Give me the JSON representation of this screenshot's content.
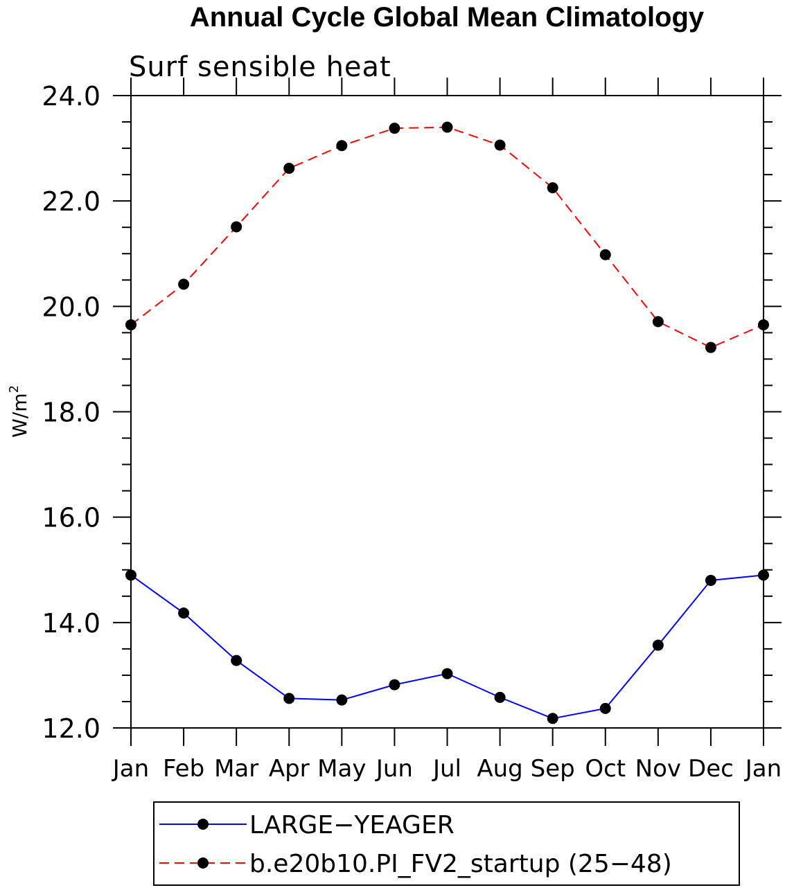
{
  "chart_data": {
    "type": "line",
    "title": "Annual Cycle Global Mean Climatology",
    "subtitle": "Surf sensible heat",
    "ylabel": "W/m",
    "ylabel_superscript": "2",
    "ylim": [
      12.0,
      24.0
    ],
    "y_major_ticks": [
      "12.0",
      "14.0",
      "16.0",
      "18.0",
      "20.0",
      "22.0",
      "24.0"
    ],
    "categories": [
      "Jan",
      "Feb",
      "Mar",
      "Apr",
      "May",
      "Jun",
      "Jul",
      "Aug",
      "Sep",
      "Oct",
      "Nov",
      "Dec",
      "Jan"
    ],
    "grid": false,
    "legend_position": "bottom",
    "series": [
      {
        "name": "LARGE−YEAGER",
        "color": "#0000ff",
        "dash": "solid",
        "marker": "filled-circle",
        "values": [
          14.9,
          14.18,
          13.28,
          12.56,
          12.53,
          12.82,
          13.03,
          12.58,
          12.18,
          12.37,
          13.57,
          14.8,
          14.9
        ]
      },
      {
        "name": "b.e20b10.PI_FV2_startup (25−48)",
        "color": "#ff0000",
        "dash": "dashed",
        "marker": "filled-circle",
        "values": [
          19.65,
          20.42,
          21.51,
          22.62,
          23.05,
          23.38,
          23.4,
          23.06,
          22.25,
          20.98,
          19.71,
          19.22,
          19.65
        ]
      }
    ]
  }
}
